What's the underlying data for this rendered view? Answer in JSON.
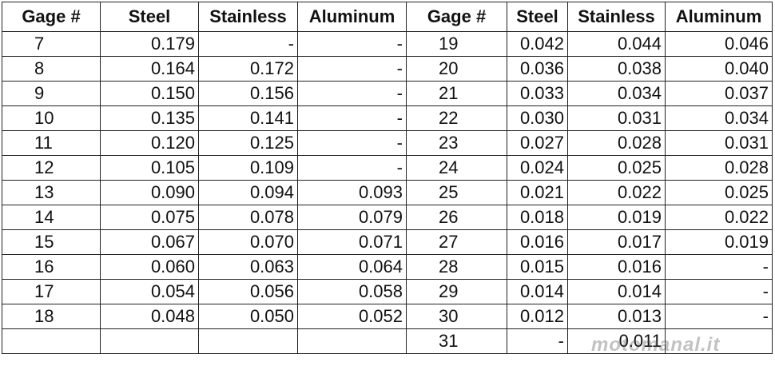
{
  "table": {
    "header": [
      "Gage #",
      "Steel",
      "Stainless",
      "Aluminum",
      "Gage #",
      "Steel",
      "Stainless",
      "Aluminum"
    ],
    "rows": [
      [
        "7",
        "0.179",
        "-",
        "-",
        "19",
        "0.042",
        "0.044",
        "0.046"
      ],
      [
        "8",
        "0.164",
        "0.172",
        "-",
        "20",
        "0.036",
        "0.038",
        "0.040"
      ],
      [
        "9",
        "0.150",
        "0.156",
        "-",
        "21",
        "0.033",
        "0.034",
        "0.037"
      ],
      [
        "10",
        "0.135",
        "0.141",
        "-",
        "22",
        "0.030",
        "0.031",
        "0.034"
      ],
      [
        "11",
        "0.120",
        "0.125",
        "-",
        "23",
        "0.027",
        "0.028",
        "0.031"
      ],
      [
        "12",
        "0.105",
        "0.109",
        "-",
        "24",
        "0.024",
        "0.025",
        "0.028"
      ],
      [
        "13",
        "0.090",
        "0.094",
        "0.093",
        "25",
        "0.021",
        "0.022",
        "0.025"
      ],
      [
        "14",
        "0.075",
        "0.078",
        "0.079",
        "26",
        "0.018",
        "0.019",
        "0.022"
      ],
      [
        "15",
        "0.067",
        "0.070",
        "0.071",
        "27",
        "0.016",
        "0.017",
        "0.019"
      ],
      [
        "16",
        "0.060",
        "0.063",
        "0.064",
        "28",
        "0.015",
        "0.016",
        "-"
      ],
      [
        "17",
        "0.054",
        "0.056",
        "0.058",
        "29",
        "0.014",
        "0.014",
        "-"
      ],
      [
        "18",
        "0.048",
        "0.050",
        "0.052",
        "30",
        "0.012",
        "0.013",
        "-"
      ],
      [
        null,
        null,
        null,
        null,
        "31",
        "-",
        "0.011",
        null
      ]
    ],
    "watermark": "motomanal.it"
  }
}
